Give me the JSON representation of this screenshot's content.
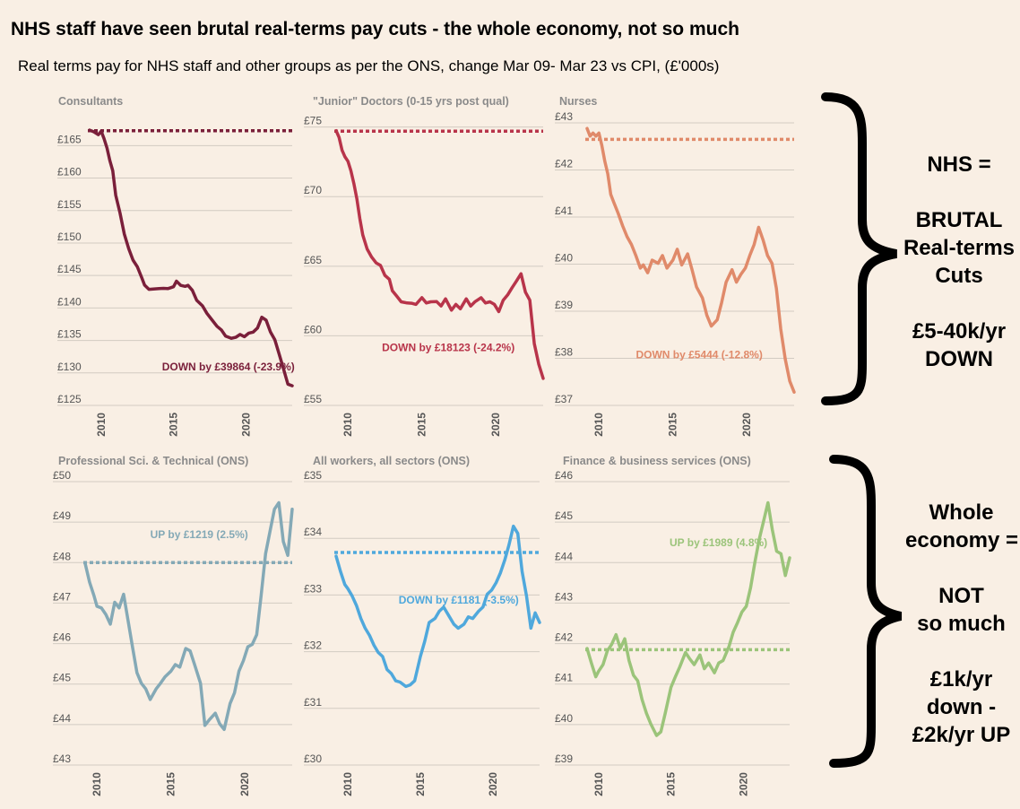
{
  "title": "NHS staff have seen brutal real-terms pay cuts - the whole economy, not so much",
  "subtitle": "Real terms pay for NHS staff and other groups as per the ONS, change Mar 09- Mar 23 vs CPI, (£'000s)",
  "side_labels": {
    "nhs": [
      "NHS =",
      "",
      "BRUTAL",
      "Real-terms",
      "Cuts",
      "",
      "£5-40k/yr",
      "DOWN"
    ],
    "economy": [
      "Whole",
      "economy =",
      "",
      "NOT",
      "so much",
      "",
      "£1k/yr",
      "down -",
      "£2k/yr UP"
    ]
  },
  "chart_data": [
    {
      "type": "line",
      "title": "Consultants",
      "color": "#7a1f3a",
      "ylim": [
        125,
        168.5
      ],
      "yticks": [
        125,
        130,
        135,
        140,
        145,
        150,
        155,
        160,
        165
      ],
      "ytick_labels": [
        "£125",
        "£130",
        "£135",
        "£140",
        "£145",
        "£150",
        "£155",
        "£160",
        "£165"
      ],
      "xlim": [
        2009.2,
        2023.2
      ],
      "xticks": [
        2010,
        2015,
        2020
      ],
      "xtick_labels": [
        "2010",
        "2015",
        "2020"
      ],
      "baseline": 167.3,
      "annotation": "DOWN by  £39864 (-23.9%)",
      "annotation_at": [
        2014.2,
        130.4
      ],
      "x": [
        2009.2,
        2009.5,
        2009.8,
        2010.0,
        2010.2,
        2010.4,
        2010.6,
        2010.8,
        2011.0,
        2011.3,
        2011.6,
        2011.9,
        2012.2,
        2012.5,
        2012.8,
        2013.0,
        2013.3,
        2013.6,
        2014.0,
        2014.3,
        2014.6,
        2014.8,
        2015.0,
        2015.2,
        2015.5,
        2015.8,
        2016.0,
        2016.3,
        2016.6,
        2017.0,
        2017.3,
        2017.6,
        2018.0,
        2018.3,
        2018.6,
        2019.0,
        2019.3,
        2019.6,
        2019.9,
        2020.2,
        2020.5,
        2020.8,
        2021.1,
        2021.4,
        2021.7,
        2022.0,
        2022.3,
        2022.6,
        2022.9,
        2023.2
      ],
      "y": [
        167.5,
        167.0,
        166.8,
        167.1,
        166.2,
        164.5,
        162.8,
        161.0,
        157.5,
        154.5,
        151.5,
        149.0,
        147.5,
        146.2,
        144.8,
        143.4,
        143.0,
        142.8,
        143.1,
        142.9,
        143.1,
        143.0,
        143.4,
        144.0,
        143.6,
        143.2,
        143.6,
        142.6,
        141.3,
        140.2,
        139.3,
        138.2,
        137.3,
        136.5,
        135.8,
        135.2,
        135.6,
        135.8,
        135.7,
        136.0,
        136.4,
        136.8,
        138.7,
        138.0,
        136.4,
        135.0,
        133.0,
        130.5,
        128.4,
        127.9
      ]
    },
    {
      "type": "line",
      "title": "\"Junior\" Doctors (0-15 yrs post qual)",
      "color": "#b8344a",
      "ylim": [
        55,
        75.3
      ],
      "yticks": [
        55,
        60,
        65,
        70,
        75
      ],
      "ytick_labels": [
        "£55",
        "£60",
        "£65",
        "£70",
        "£75"
      ],
      "xlim": [
        2009.2,
        2023.2
      ],
      "xticks": [
        2010,
        2015,
        2020
      ],
      "xtick_labels": [
        "2010",
        "2015",
        "2020"
      ],
      "baseline": 74.7,
      "annotation": "DOWN by  £18123 (-24.2%)",
      "annotation_at": [
        2012.3,
        58.9
      ],
      "x": [
        2009.2,
        2009.4,
        2009.6,
        2009.8,
        2010.0,
        2010.2,
        2010.4,
        2010.6,
        2010.8,
        2011.0,
        2011.3,
        2011.6,
        2011.9,
        2012.2,
        2012.5,
        2012.8,
        2013.0,
        2013.3,
        2013.6,
        2014.0,
        2014.3,
        2014.6,
        2015.0,
        2015.3,
        2015.6,
        2016.0,
        2016.3,
        2016.6,
        2017.0,
        2017.3,
        2017.6,
        2018.0,
        2018.3,
        2018.6,
        2019.0,
        2019.3,
        2019.6,
        2019.9,
        2020.2,
        2020.5,
        2020.8,
        2021.1,
        2021.4,
        2021.7,
        2022.0,
        2022.3,
        2022.6,
        2022.9,
        2023.2
      ],
      "y": [
        74.8,
        74.2,
        73.4,
        72.8,
        72.6,
        71.8,
        71.0,
        69.8,
        68.5,
        67.2,
        66.3,
        65.6,
        65.3,
        65.0,
        64.4,
        64.0,
        63.3,
        62.8,
        62.5,
        62.3,
        62.4,
        62.2,
        62.8,
        62.3,
        62.5,
        62.4,
        62.2,
        62.6,
        61.9,
        62.2,
        62.0,
        62.6,
        62.2,
        62.4,
        62.8,
        62.3,
        62.5,
        62.2,
        61.8,
        62.5,
        63.0,
        63.4,
        64.0,
        64.4,
        63.2,
        62.5,
        59.5,
        57.9,
        57.0
      ]
    },
    {
      "type": "line",
      "title": "Nurses",
      "color": "#e08a6a",
      "ylim": [
        37,
        43
      ],
      "yticks": [
        37,
        38,
        39,
        40,
        41,
        42,
        43
      ],
      "ytick_labels": [
        "£37",
        "£38",
        "£39",
        "£40",
        "£41",
        "£42",
        "£43"
      ],
      "xlim": [
        2009.2,
        2023.2
      ],
      "xticks": [
        2010,
        2015,
        2020
      ],
      "xtick_labels": [
        "2010",
        "2015",
        "2020"
      ],
      "baseline": 42.65,
      "annotation": "DOWN by  £5444 (-12.8%)",
      "annotation_at": [
        2012.5,
        38.0
      ],
      "x": [
        2009.2,
        2009.4,
        2009.6,
        2009.8,
        2010.0,
        2010.2,
        2010.4,
        2010.6,
        2010.8,
        2011.0,
        2011.3,
        2011.6,
        2011.9,
        2012.2,
        2012.5,
        2012.8,
        2013.0,
        2013.3,
        2013.6,
        2014.0,
        2014.3,
        2014.6,
        2015.0,
        2015.3,
        2015.6,
        2016.0,
        2016.3,
        2016.6,
        2017.0,
        2017.3,
        2017.6,
        2018.0,
        2018.3,
        2018.6,
        2019.0,
        2019.3,
        2019.6,
        2019.9,
        2020.2,
        2020.5,
        2020.8,
        2021.1,
        2021.4,
        2021.7,
        2022.0,
        2022.3,
        2022.6,
        2022.9,
        2023.2
      ],
      "y": [
        42.9,
        42.7,
        42.8,
        42.7,
        42.8,
        42.5,
        42.2,
        41.9,
        41.5,
        41.3,
        41.1,
        40.8,
        40.6,
        40.4,
        40.2,
        39.9,
        40.0,
        39.8,
        40.1,
        40.0,
        40.2,
        39.9,
        40.1,
        40.3,
        40.0,
        40.2,
        39.9,
        39.5,
        39.3,
        38.9,
        38.7,
        38.8,
        39.2,
        39.6,
        39.9,
        39.6,
        39.8,
        39.9,
        40.2,
        40.4,
        40.8,
        40.5,
        40.2,
        40.0,
        39.5,
        38.6,
        38.0,
        37.5,
        37.3
      ]
    },
    {
      "type": "line",
      "title": "Professional Sci. & Technical (ONS)",
      "color": "#84a9b6",
      "ylim": [
        43,
        50
      ],
      "yticks": [
        43,
        44,
        45,
        46,
        47,
        48,
        49,
        50
      ],
      "ytick_labels": [
        "£43",
        "£44",
        "£45",
        "£46",
        "£47",
        "£48",
        "£49",
        "£50"
      ],
      "xlim": [
        2009.2,
        2023.2
      ],
      "xticks": [
        2010,
        2015,
        2020
      ],
      "xtick_labels": [
        "2010",
        "2015",
        "2020"
      ],
      "baseline": 48.0,
      "annotation": "UP by  £1219 (2.5%)",
      "annotation_at": [
        2013.6,
        48.6
      ],
      "x": [
        2009.2,
        2009.5,
        2009.8,
        2010.0,
        2010.3,
        2010.6,
        2010.9,
        2011.2,
        2011.5,
        2011.8,
        2012.1,
        2012.4,
        2012.7,
        2013.0,
        2013.3,
        2013.6,
        2014.0,
        2014.3,
        2014.6,
        2015.0,
        2015.3,
        2015.6,
        2016.0,
        2016.3,
        2016.6,
        2017.0,
        2017.3,
        2017.6,
        2018.0,
        2018.3,
        2018.6,
        2019.0,
        2019.3,
        2019.6,
        2019.9,
        2020.2,
        2020.5,
        2020.8,
        2021.1,
        2021.4,
        2021.7,
        2022.0,
        2022.3,
        2022.6,
        2022.9,
        2023.2
      ],
      "y": [
        48.0,
        47.5,
        47.2,
        46.9,
        46.9,
        46.7,
        46.5,
        47.0,
        46.9,
        47.2,
        46.6,
        45.9,
        45.3,
        45.0,
        44.9,
        44.6,
        44.9,
        45.0,
        45.2,
        45.3,
        45.5,
        45.4,
        45.9,
        45.8,
        45.5,
        45.0,
        44.0,
        44.1,
        44.3,
        44.0,
        43.9,
        44.5,
        44.8,
        45.3,
        45.6,
        45.9,
        46.0,
        46.2,
        47.2,
        48.2,
        48.8,
        49.3,
        49.5,
        48.5,
        48.2,
        49.3
      ]
    },
    {
      "type": "line",
      "title": "All workers, all sectors (ONS)",
      "color": "#4fa8dc",
      "ylim": [
        30,
        35
      ],
      "yticks": [
        30,
        31,
        32,
        33,
        34,
        35
      ],
      "ytick_labels": [
        "£30",
        "£31",
        "£32",
        "£33",
        "£34",
        "£35"
      ],
      "xlim": [
        2009.2,
        2023.2
      ],
      "xticks": [
        2010,
        2015,
        2020
      ],
      "xtick_labels": [
        "2010",
        "2015",
        "2020"
      ],
      "baseline": 33.75,
      "annotation": "DOWN by  £1181 (-3.5%)",
      "annotation_at": [
        2013.5,
        32.85
      ],
      "x": [
        2009.2,
        2009.5,
        2009.8,
        2010.0,
        2010.3,
        2010.6,
        2010.9,
        2011.2,
        2011.5,
        2011.8,
        2012.1,
        2012.4,
        2012.7,
        2013.0,
        2013.3,
        2013.6,
        2014.0,
        2014.3,
        2014.6,
        2015.0,
        2015.3,
        2015.6,
        2016.0,
        2016.3,
        2016.6,
        2017.0,
        2017.3,
        2017.6,
        2018.0,
        2018.3,
        2018.6,
        2019.0,
        2019.3,
        2019.6,
        2019.9,
        2020.2,
        2020.5,
        2020.8,
        2021.1,
        2021.4,
        2021.7,
        2022.0,
        2022.3,
        2022.6,
        2022.9,
        2023.2
      ],
      "y": [
        33.7,
        33.4,
        33.2,
        33.1,
        33.0,
        32.8,
        32.6,
        32.4,
        32.3,
        32.1,
        32.0,
        31.9,
        31.7,
        31.6,
        31.5,
        31.45,
        31.4,
        31.4,
        31.5,
        31.9,
        32.2,
        32.5,
        32.6,
        32.7,
        32.8,
        32.6,
        32.5,
        32.4,
        32.5,
        32.6,
        32.6,
        32.7,
        32.8,
        33.0,
        33.1,
        33.2,
        33.4,
        33.6,
        33.9,
        34.2,
        34.1,
        33.4,
        33.0,
        32.4,
        32.7,
        32.5
      ]
    },
    {
      "type": "line",
      "title": "Finance & business services (ONS)",
      "color": "#9bc47a",
      "ylim": [
        39,
        46
      ],
      "yticks": [
        39,
        40,
        41,
        42,
        43,
        44,
        45,
        46
      ],
      "ytick_labels": [
        "£39",
        "£40",
        "£41",
        "£42",
        "£43",
        "£44",
        "£45",
        "£46"
      ],
      "xlim": [
        2009.2,
        2023.2
      ],
      "xticks": [
        2010,
        2015,
        2020
      ],
      "xtick_labels": [
        "2010",
        "2015",
        "2020"
      ],
      "baseline": 41.85,
      "annotation": "UP by  £1989 (4.8%)",
      "annotation_at": [
        2014.9,
        44.4
      ],
      "x": [
        2009.2,
        2009.5,
        2009.8,
        2010.0,
        2010.3,
        2010.6,
        2010.9,
        2011.2,
        2011.5,
        2011.8,
        2012.1,
        2012.4,
        2012.7,
        2013.0,
        2013.3,
        2013.6,
        2014.0,
        2014.3,
        2014.6,
        2015.0,
        2015.3,
        2015.6,
        2016.0,
        2016.3,
        2016.6,
        2017.0,
        2017.3,
        2017.6,
        2018.0,
        2018.3,
        2018.6,
        2019.0,
        2019.3,
        2019.6,
        2019.9,
        2020.2,
        2020.5,
        2020.8,
        2021.1,
        2021.4,
        2021.7,
        2022.0,
        2022.3,
        2022.6,
        2022.9,
        2023.2
      ],
      "y": [
        41.9,
        41.5,
        41.2,
        41.3,
        41.5,
        41.8,
        42.0,
        42.2,
        41.9,
        42.1,
        41.6,
        41.2,
        41.1,
        40.6,
        40.3,
        40.0,
        39.75,
        39.8,
        40.3,
        40.9,
        41.2,
        41.4,
        41.8,
        41.6,
        41.5,
        41.7,
        41.4,
        41.5,
        41.3,
        41.5,
        41.6,
        41.9,
        42.3,
        42.5,
        42.8,
        42.9,
        43.4,
        44.0,
        44.6,
        45.0,
        45.5,
        44.8,
        44.3,
        44.2,
        43.7,
        44.1
      ]
    }
  ]
}
